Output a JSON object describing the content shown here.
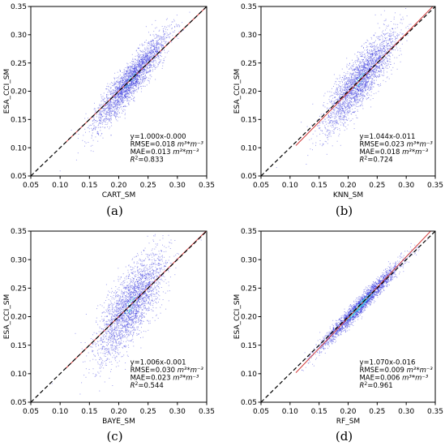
{
  "chart_data": [
    {
      "type": "scatter",
      "panel_label": "(a)",
      "xlabel": "CART_SM",
      "ylabel": "ESA_CCI_SM",
      "xlim": [
        0.05,
        0.35
      ],
      "ylim": [
        0.05,
        0.35
      ],
      "ticks": [
        "0.05",
        "0.10",
        "0.15",
        "0.20",
        "0.25",
        "0.30",
        "0.35"
      ],
      "fit": {
        "slope": 1.0,
        "intercept": -0.0
      },
      "stats": {
        "equation": "y=1.000x-0.000",
        "rmse": "RMSE=0.018",
        "mae": "MAE=0.013",
        "unit": "m³*m⁻³",
        "r2_prefix": "R",
        "r2_value": "=0.833"
      },
      "cloud": {
        "center": [
          0.22,
          0.22
        ],
        "sd_x": 0.03,
        "sd_y": 0.04,
        "corr": 0.91
      }
    },
    {
      "type": "scatter",
      "panel_label": "(b)",
      "xlabel": "KNN_SM",
      "ylabel": "ESA_CCI_SM",
      "xlim": [
        0.05,
        0.35
      ],
      "ylim": [
        0.05,
        0.35
      ],
      "ticks": [
        "0.05",
        "0.10",
        "0.15",
        "0.20",
        "0.25",
        "0.30",
        "0.35"
      ],
      "fit": {
        "slope": 1.044,
        "intercept": -0.011
      },
      "stats": {
        "equation": "y=1.044x-0.011",
        "rmse": "RMSE=0.023",
        "mae": "MAE=0.018",
        "unit": "m³*m⁻³",
        "r2_prefix": "R",
        "r2_value": "=0.724"
      },
      "cloud": {
        "center": [
          0.22,
          0.22
        ],
        "sd_x": 0.03,
        "sd_y": 0.042,
        "corr": 0.85
      }
    },
    {
      "type": "scatter",
      "panel_label": "(c)",
      "xlabel": "BAYE_SM",
      "ylabel": "ESA_CCI_SM",
      "xlim": [
        0.05,
        0.35
      ],
      "ylim": [
        0.05,
        0.35
      ],
      "ticks": [
        "0.05",
        "0.10",
        "0.15",
        "0.20",
        "0.25",
        "0.30",
        "0.35"
      ],
      "fit": {
        "slope": 1.006,
        "intercept": -0.001
      },
      "stats": {
        "equation": "y=1.006x-0.001",
        "rmse": "RMSE=0.030",
        "mae": "MAE=0.023",
        "unit": "m³*m⁻³",
        "r2_prefix": "R",
        "r2_value": "=0.544"
      },
      "cloud": {
        "center": [
          0.22,
          0.22
        ],
        "sd_x": 0.028,
        "sd_y": 0.045,
        "corr": 0.74
      }
    },
    {
      "type": "scatter",
      "panel_label": "(d)",
      "xlabel": "RF_SM",
      "ylabel": "ESA_CCI_SM",
      "xlim": [
        0.05,
        0.35
      ],
      "ylim": [
        0.05,
        0.35
      ],
      "ticks": [
        "0.05",
        "0.10",
        "0.15",
        "0.20",
        "0.25",
        "0.30",
        "0.35"
      ],
      "fit": {
        "slope": 1.07,
        "intercept": -0.016
      },
      "stats": {
        "equation": "y=1.070x-0.016",
        "rmse": "RMSE=0.009",
        "mae": "MAE=0.006",
        "unit": "m³*m⁻³",
        "r2_prefix": "R",
        "r2_value": "=0.961"
      },
      "cloud": {
        "center": [
          0.22,
          0.22
        ],
        "sd_x": 0.035,
        "sd_y": 0.038,
        "corr": 0.98
      }
    }
  ],
  "colors": {
    "point": "#2a2adc",
    "dense": "#3fd6e0",
    "fit_line": "#d23c3c",
    "identity_line": "#000000",
    "axis": "#000000"
  }
}
